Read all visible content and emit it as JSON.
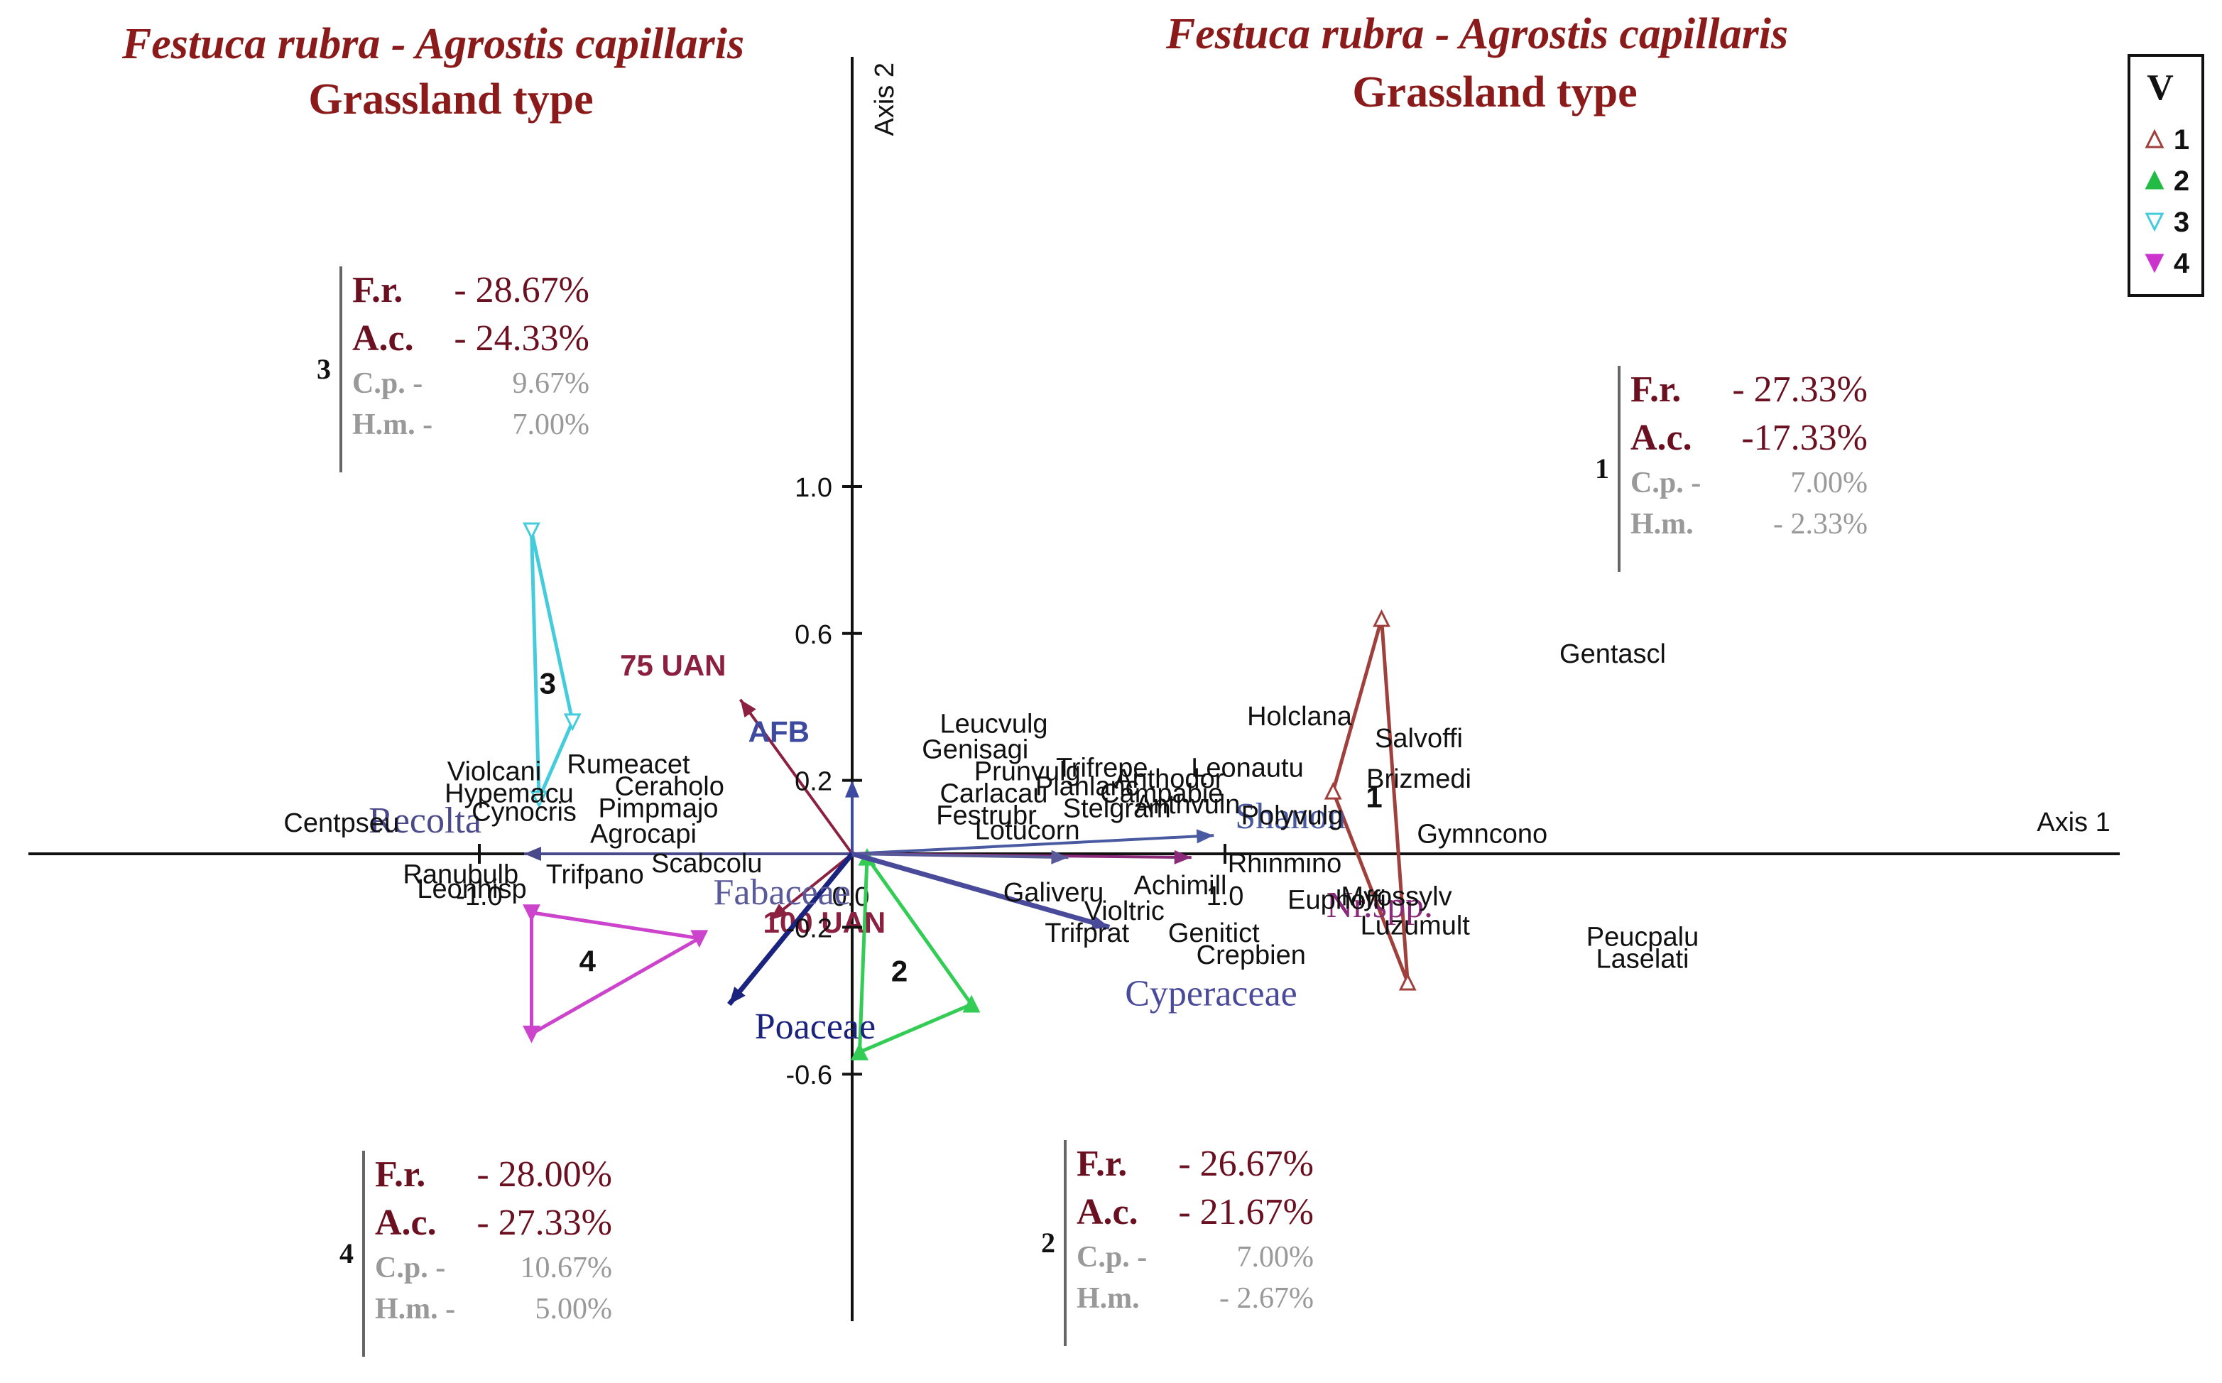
{
  "titles": {
    "left": {
      "line1": "Festuca rubra - Agrostis capillaris",
      "line2": "Grassland type"
    },
    "right": {
      "line1": "Festuca rubra - Agrostis capillaris",
      "line2": "Grassland type"
    }
  },
  "chart_data": {
    "type": "scatter",
    "subtype": "ordination biplot",
    "x_axis": {
      "label": "Axis 1",
      "lim": [
        -1.1,
        1.7
      ],
      "ticks": [
        -1.0,
        1.0
      ],
      "tick_labels": [
        "-1.0",
        "1.0"
      ]
    },
    "y_axis": {
      "label": "Axis 2",
      "lim": [
        -0.65,
        1.1
      ],
      "ticks": [
        1.0,
        0.6,
        0.2,
        -0.2,
        -0.6
      ],
      "tick_labels": [
        "1.0",
        "0.6",
        "0.2",
        "-0.2",
        "-0.6"
      ]
    },
    "origin_label": "0.0",
    "species": [
      {
        "name": "Leucvulg",
        "x": 0.38,
        "y": 0.33
      },
      {
        "name": "Genisagi",
        "x": 0.33,
        "y": 0.26
      },
      {
        "name": "Prunvulg",
        "x": 0.47,
        "y": 0.2
      },
      {
        "name": "Trifrepe",
        "x": 0.67,
        "y": 0.21
      },
      {
        "name": "Carlacau",
        "x": 0.38,
        "y": 0.14
      },
      {
        "name": "Planlanc",
        "x": 0.63,
        "y": 0.16
      },
      {
        "name": "Anthodor",
        "x": 0.85,
        "y": 0.18
      },
      {
        "name": "Campabie",
        "x": 0.83,
        "y": 0.14
      },
      {
        "name": "Anthvuln",
        "x": 0.9,
        "y": 0.11
      },
      {
        "name": "Stelgram",
        "x": 0.71,
        "y": 0.1
      },
      {
        "name": "Festrubr",
        "x": 0.36,
        "y": 0.08
      },
      {
        "name": "Lotucorn",
        "x": 0.47,
        "y": 0.04
      },
      {
        "name": "Holclana",
        "x": 1.2,
        "y": 0.35
      },
      {
        "name": "Leonautu",
        "x": 1.06,
        "y": 0.21
      },
      {
        "name": "Salvoffi",
        "x": 1.52,
        "y": 0.29
      },
      {
        "name": "Brizmedi",
        "x": 1.52,
        "y": 0.18
      },
      {
        "name": "Polyvulg",
        "x": 1.18,
        "y": 0.08
      },
      {
        "name": "Gentascl",
        "x": 2.04,
        "y": 0.52
      },
      {
        "name": "Gymncono",
        "x": 1.69,
        "y": 0.03
      },
      {
        "name": "Rhinmino",
        "x": 1.16,
        "y": -0.05
      },
      {
        "name": "Achimill",
        "x": 0.88,
        "y": -0.11
      },
      {
        "name": "Euphoffi",
        "x": 1.3,
        "y": -0.15
      },
      {
        "name": "Myossylv",
        "x": 1.46,
        "y": -0.14
      },
      {
        "name": "Luzumult",
        "x": 1.51,
        "y": -0.22
      },
      {
        "name": "Galiveru",
        "x": 0.54,
        "y": -0.13
      },
      {
        "name": "Violtric",
        "x": 0.73,
        "y": -0.18
      },
      {
        "name": "Trifprat",
        "x": 0.63,
        "y": -0.24
      },
      {
        "name": "Genitict",
        "x": 0.97,
        "y": -0.24
      },
      {
        "name": "Crepbien",
        "x": 1.07,
        "y": -0.3
      },
      {
        "name": "Peucpalu",
        "x": 2.12,
        "y": -0.25
      },
      {
        "name": "Laselati",
        "x": 2.12,
        "y": -0.31
      },
      {
        "name": "Violcani",
        "x": -0.96,
        "y": 0.2
      },
      {
        "name": "Rumeacet",
        "x": -0.6,
        "y": 0.22
      },
      {
        "name": "Ceraholo",
        "x": -0.49,
        "y": 0.16
      },
      {
        "name": "Hypemacu",
        "x": -0.92,
        "y": 0.14
      },
      {
        "name": "Cynocris",
        "x": -0.88,
        "y": 0.09
      },
      {
        "name": "Pimpmajo",
        "x": -0.52,
        "y": 0.1
      },
      {
        "name": "Centpseu",
        "x": -1.37,
        "y": 0.06
      },
      {
        "name": "Agrocapi",
        "x": -0.56,
        "y": 0.03
      },
      {
        "name": "Scabcolu",
        "x": -0.39,
        "y": -0.05
      },
      {
        "name": "Ranubulb",
        "x": -1.05,
        "y": -0.08
      },
      {
        "name": "Trifpano",
        "x": -0.69,
        "y": -0.08
      },
      {
        "name": "Leonhisp",
        "x": -1.02,
        "y": -0.12
      }
    ],
    "env_vectors": [
      {
        "name": "Recolta",
        "x": -0.88,
        "y": 0.0,
        "color": "#4a4a8a",
        "style": "serif"
      },
      {
        "name": "75 UAN",
        "x": -0.3,
        "y": 0.42,
        "color": "#8b2040",
        "style": "sans-bold"
      },
      {
        "name": "AFB",
        "x": 0.0,
        "y": 0.2,
        "color": "#3d4aa0",
        "style": "sans-bold"
      },
      {
        "name": "100 UAN",
        "x": -0.22,
        "y": -0.18,
        "color": "#8b2040",
        "style": "sans-bold"
      },
      {
        "name": "Poaceae",
        "x": -0.33,
        "y": -0.41,
        "color": "#1a237e",
        "style": "serif"
      },
      {
        "name": "Shanon",
        "x": 0.97,
        "y": 0.05,
        "color": "#4a5aa0",
        "style": "serif"
      },
      {
        "name": "Nr.spp.",
        "x": 0.91,
        "y": -0.01,
        "color": "#8b2a7a",
        "style": "serif"
      },
      {
        "name": "Fabaceae",
        "x": 0.58,
        "y": -0.01,
        "color": "#5a5a9a",
        "style": "serif"
      },
      {
        "name": "Cyperaceae",
        "x": 0.69,
        "y": -0.2,
        "color": "#4a4a9a",
        "style": "serif"
      }
    ],
    "groups": [
      {
        "label": "1",
        "color": "#a0403c",
        "marker": "triangle-up-open",
        "vertices": [
          [
            1.42,
            0.64
          ],
          [
            1.29,
            0.17
          ],
          [
            1.49,
            -0.35
          ]
        ]
      },
      {
        "label": "2",
        "color": "#33cc55",
        "marker": "triangle-up-filled",
        "vertices": [
          [
            0.04,
            -0.01
          ],
          [
            0.02,
            -0.54
          ],
          [
            0.32,
            -0.41
          ]
        ]
      },
      {
        "label": "3",
        "color": "#44ccdd",
        "marker": "triangle-down-open",
        "vertices": [
          [
            -0.86,
            0.88
          ],
          [
            -0.75,
            0.36
          ],
          [
            -0.84,
            0.15
          ]
        ]
      },
      {
        "label": "4",
        "color": "#cc44cc",
        "marker": "triangle-down-filled",
        "vertices": [
          [
            -0.86,
            -0.16
          ],
          [
            -0.41,
            -0.23
          ],
          [
            -0.86,
            -0.49
          ]
        ]
      }
    ],
    "group_stats": [
      {
        "group": "3",
        "fr_label": "F.r.",
        "fr": "- 28.67%",
        "ac_label": "A.c.",
        "ac": "- 24.33%",
        "cp_label": "C.p. -",
        "cp": "9.67%",
        "hm_label": "H.m. -",
        "hm": "7.00%"
      },
      {
        "group": "1",
        "fr_label": "F.r.",
        "fr": "- 27.33%",
        "ac_label": "A.c.",
        "ac": "-17.33%",
        "cp_label": "C.p. -",
        "cp": "7.00%",
        "hm_label": "H.m.",
        "hm": "- 2.33%"
      },
      {
        "group": "4",
        "fr_label": "F.r.",
        "fr": "- 28.00%",
        "ac_label": "A.c.",
        "ac": "- 27.33%",
        "cp_label": "C.p. -",
        "cp": "10.67%",
        "hm_label": "H.m. -",
        "hm": "5.00%"
      },
      {
        "group": "2",
        "fr_label": "F.r.",
        "fr": "- 26.67%",
        "ac_label": "A.c.",
        "ac": "- 21.67%",
        "cp_label": "C.p. -",
        "cp": "7.00%",
        "hm_label": "H.m.",
        "hm": "- 2.67%"
      }
    ],
    "legend": {
      "title": "V",
      "placement": "top-right",
      "items": [
        {
          "label": "1",
          "color": "#a0403c",
          "marker": "triangle-up-open"
        },
        {
          "label": "2",
          "color": "#22bb44",
          "marker": "triangle-up-filled"
        },
        {
          "label": "3",
          "color": "#44ccdd",
          "marker": "triangle-down-open"
        },
        {
          "label": "4",
          "color": "#cc33cc",
          "marker": "triangle-down-filled"
        }
      ]
    }
  },
  "colors": {
    "title": "#8b1a1a",
    "stat_main": "#6b1020",
    "stat_minor": "#999999",
    "axis": "#111111"
  }
}
